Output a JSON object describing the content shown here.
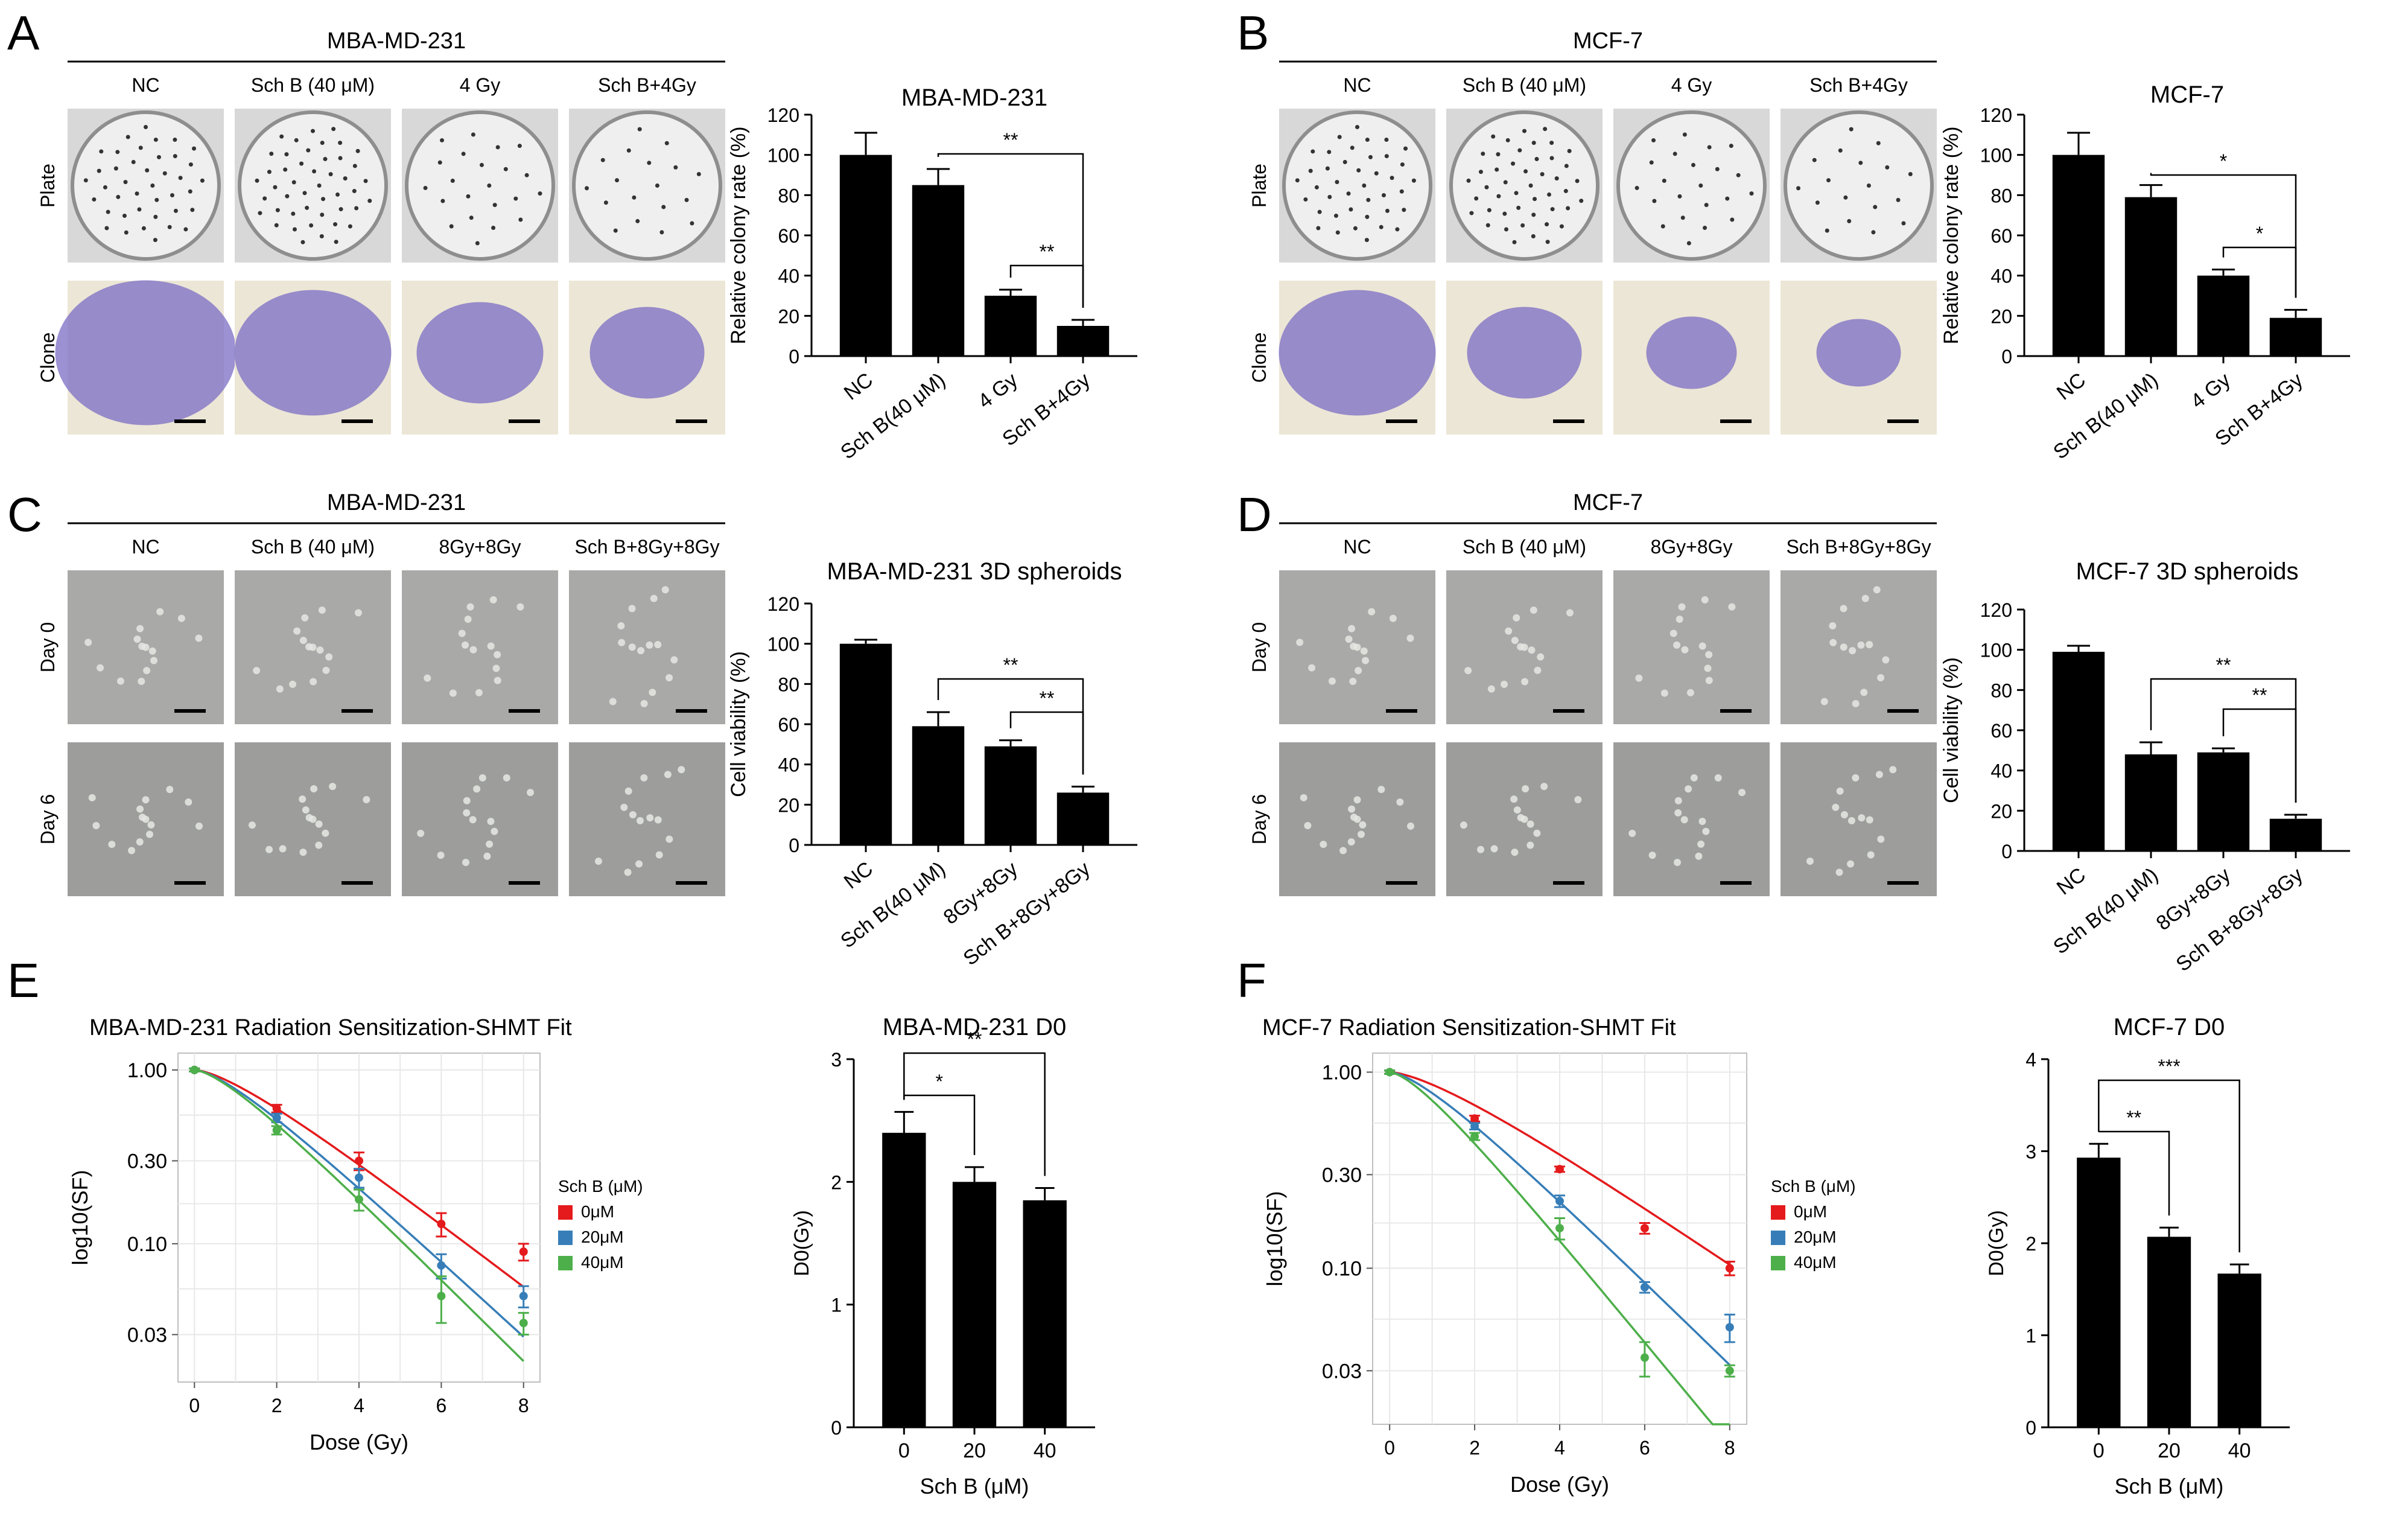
{
  "panels": {
    "A": {
      "letter": "A",
      "cell_line": "MBA-MD-231",
      "columns": [
        "NC",
        "Sch B (40 μM)",
        "4 Gy",
        "Sch B+4Gy"
      ],
      "rows": [
        "Plate",
        "Clone"
      ]
    },
    "B": {
      "letter": "B",
      "cell_line": "MCF-7",
      "columns": [
        "NC",
        "Sch B (40 μM)",
        "4 Gy",
        "Sch B+4Gy"
      ],
      "rows": [
        "Plate",
        "Clone"
      ]
    },
    "C": {
      "letter": "C",
      "cell_line": "MBA-MD-231",
      "columns": [
        "NC",
        "Sch B (40 μM)",
        "8Gy+8Gy",
        "Sch B+8Gy+8Gy"
      ],
      "rows": [
        "Day 0",
        "Day 6"
      ]
    },
    "D": {
      "letter": "D",
      "cell_line": "MCF-7",
      "columns": [
        "NC",
        "Sch B (40 μM)",
        "8Gy+8Gy",
        "Sch B+8Gy+8Gy"
      ],
      "rows": [
        "Day 0",
        "Day 6"
      ]
    },
    "E": {
      "letter": "E"
    },
    "F": {
      "letter": "F"
    }
  },
  "colors": {
    "bar": "#000000",
    "red": "#e41a1c",
    "blue": "#377eb8",
    "green": "#4daf4a",
    "grid": "#e6e6e6"
  },
  "chart_data": [
    {
      "id": "A_bar",
      "type": "bar",
      "title": "MBA-MD-231",
      "categories": [
        "NC",
        "Sch B(40 μM)",
        "4 Gy",
        "Sch B+4Gy"
      ],
      "values": [
        100,
        85,
        30,
        15
      ],
      "errors": [
        11,
        8,
        3,
        3
      ],
      "ylabel": "Relative colony rate (%)",
      "ylim": [
        0,
        120
      ],
      "yticks": [
        "0",
        "20",
        "40",
        "60",
        "80",
        "100",
        "120"
      ],
      "significance": [
        {
          "from": 2,
          "to": 3,
          "label": "**"
        },
        {
          "from": 1,
          "to": 3,
          "label": "**"
        }
      ]
    },
    {
      "id": "B_bar",
      "type": "bar",
      "title": "MCF-7",
      "categories": [
        "NC",
        "Sch B(40 μM)",
        "4 Gy",
        "Sch B+4Gy"
      ],
      "values": [
        100,
        79,
        40,
        19
      ],
      "errors": [
        11,
        6,
        3,
        4
      ],
      "ylabel": "Relative colony rate (%)",
      "ylim": [
        0,
        120
      ],
      "yticks": [
        "0",
        "20",
        "40",
        "60",
        "80",
        "100",
        "120"
      ],
      "significance": [
        {
          "from": 2,
          "to": 3,
          "label": "*"
        },
        {
          "from": 1,
          "to": 3,
          "label": "*"
        }
      ]
    },
    {
      "id": "C_bar",
      "type": "bar",
      "title": "MBA-MD-231 3D spheroids",
      "categories": [
        "NC",
        "Sch B(40 μM)",
        "8Gy+8Gy",
        "Sch B+8Gy+8Gy"
      ],
      "values": [
        100,
        59,
        49,
        26
      ],
      "errors": [
        2,
        7,
        3,
        3
      ],
      "ylabel": "Cell viability (%)",
      "ylim": [
        0,
        120
      ],
      "yticks": [
        "0",
        "20",
        "40",
        "60",
        "80",
        "100",
        "120"
      ],
      "significance": [
        {
          "from": 2,
          "to": 3,
          "label": "**"
        },
        {
          "from": 1,
          "to": 3,
          "label": "**"
        }
      ]
    },
    {
      "id": "D_bar",
      "type": "bar",
      "title": "MCF-7 3D spheroids",
      "categories": [
        "NC",
        "Sch B(40 μM)",
        "8Gy+8Gy",
        "Sch B+8Gy+8Gy"
      ],
      "values": [
        99,
        48,
        49,
        16
      ],
      "errors": [
        3,
        6,
        2,
        2
      ],
      "ylabel": "Cell viability (%)",
      "ylim": [
        0,
        120
      ],
      "yticks": [
        "0",
        "20",
        "40",
        "60",
        "80",
        "100",
        "120"
      ],
      "significance": [
        {
          "from": 2,
          "to": 3,
          "label": "**"
        },
        {
          "from": 1,
          "to": 3,
          "label": "**"
        }
      ]
    },
    {
      "id": "E_line",
      "type": "scatter",
      "title": "MBA-MD-231 Radiation Sensitization-SHMT Fit",
      "xlabel": "Dose (Gy)",
      "ylabel": "log10(SF)",
      "log_y": true,
      "xlim": [
        -0.4,
        8.4
      ],
      "ylim": [
        0.016,
        1.25
      ],
      "xticks": [
        0,
        2,
        4,
        6,
        8
      ],
      "yticks": [
        1.0,
        0.3,
        0.1,
        0.03
      ],
      "ytick_labels": [
        "1.00",
        "0.30",
        "0.10",
        "0.03"
      ],
      "legend_title": "Sch B (μM)",
      "series": [
        {
          "name": "0μM",
          "color": "#e41a1c",
          "x": [
            0,
            2,
            4,
            6,
            8
          ],
          "y": [
            1.0,
            0.6,
            0.3,
            0.13,
            0.09
          ],
          "err": [
            0.02,
            0.03,
            0.035,
            0.02,
            0.01
          ],
          "fit_D0": 2.4
        },
        {
          "name": "20μM",
          "color": "#377eb8",
          "x": [
            0,
            2,
            4,
            6,
            8
          ],
          "y": [
            1.0,
            0.53,
            0.24,
            0.075,
            0.05
          ],
          "err": [
            0.02,
            0.03,
            0.03,
            0.012,
            0.007
          ],
          "fit_D0": 2.0
        },
        {
          "name": "40μM",
          "color": "#4daf4a",
          "x": [
            0,
            2,
            4,
            6,
            8
          ],
          "y": [
            1.0,
            0.45,
            0.18,
            0.05,
            0.035
          ],
          "err": [
            0.02,
            0.025,
            0.025,
            0.015,
            0.005
          ],
          "fit_D0": 1.85
        }
      ]
    },
    {
      "id": "E_bar",
      "type": "bar",
      "title": "MBA-MD-231 D0",
      "categories": [
        "0",
        "20",
        "40"
      ],
      "values": [
        2.4,
        2.0,
        1.85
      ],
      "errors": [
        0.17,
        0.12,
        0.1
      ],
      "xlabel": "Sch B (μM)",
      "ylabel": "D0(Gy)",
      "ylim": [
        0,
        3
      ],
      "yticks": [
        "0",
        "1",
        "2",
        "3"
      ],
      "significance": [
        {
          "from": 0,
          "to": 1,
          "label": "*"
        },
        {
          "from": 0,
          "to": 2,
          "label": "**"
        }
      ]
    },
    {
      "id": "F_line",
      "type": "scatter",
      "title": "MCF-7 Radiation Sensitization-SHMT Fit",
      "xlabel": "Dose (Gy)",
      "ylabel": "log10(SF)",
      "log_y": true,
      "xlim": [
        -0.4,
        8.4
      ],
      "ylim": [
        0.016,
        1.25
      ],
      "xticks": [
        0,
        2,
        4,
        6,
        8
      ],
      "yticks": [
        1.0,
        0.3,
        0.1,
        0.03
      ],
      "ytick_labels": [
        "1.00",
        "0.30",
        "0.10",
        "0.03"
      ],
      "legend_title": "Sch B (μM)",
      "series": [
        {
          "name": "0μM",
          "color": "#e41a1c",
          "x": [
            0,
            2,
            4,
            6,
            8
          ],
          "y": [
            1.0,
            0.58,
            0.32,
            0.16,
            0.1
          ],
          "err": [
            0.02,
            0.02,
            0.01,
            0.01,
            0.008
          ],
          "fit_D0": 2.95
        },
        {
          "name": "20μM",
          "color": "#377eb8",
          "x": [
            0,
            2,
            4,
            6,
            8
          ],
          "y": [
            1.0,
            0.53,
            0.22,
            0.08,
            0.05
          ],
          "err": [
            0.02,
            0.02,
            0.015,
            0.005,
            0.008
          ],
          "fit_D0": 2.05
        },
        {
          "name": "40μM",
          "color": "#4daf4a",
          "x": [
            0,
            2,
            4,
            6,
            8
          ],
          "y": [
            1.0,
            0.47,
            0.16,
            0.035,
            0.03
          ],
          "err": [
            0.02,
            0.02,
            0.02,
            0.007,
            0.002
          ],
          "fit_D0": 1.65
        }
      ]
    },
    {
      "id": "F_bar",
      "type": "bar",
      "title": "MCF-7 D0",
      "categories": [
        "0",
        "20",
        "40"
      ],
      "values": [
        2.93,
        2.07,
        1.67
      ],
      "errors": [
        0.15,
        0.1,
        0.1
      ],
      "xlabel": "Sch B (μM)",
      "ylabel": "D0(Gy)",
      "ylim": [
        0,
        4
      ],
      "yticks": [
        "0",
        "1",
        "2",
        "3",
        "4"
      ],
      "significance": [
        {
          "from": 0,
          "to": 1,
          "label": "**"
        },
        {
          "from": 0,
          "to": 2,
          "label": "***"
        }
      ]
    }
  ]
}
